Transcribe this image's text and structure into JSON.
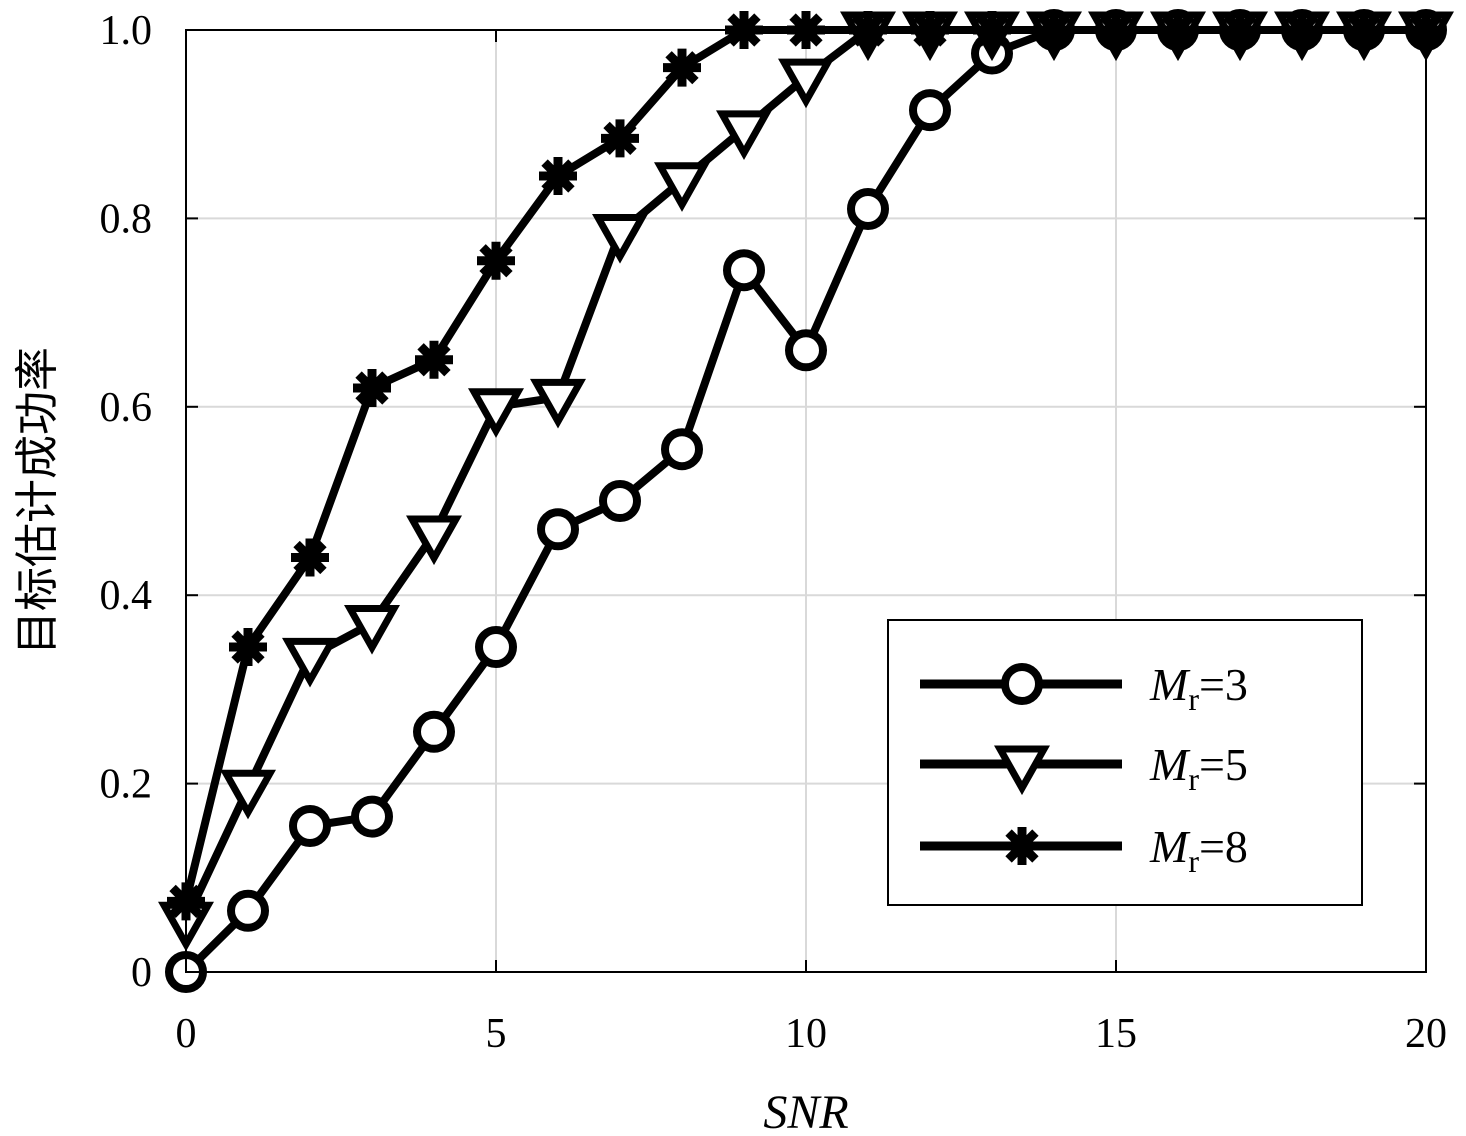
{
  "chart_data": {
    "type": "line",
    "title": "",
    "xlabel": "SNR",
    "ylabel": "目标估计成功率",
    "xlim": [
      0,
      20
    ],
    "ylim": [
      0,
      1
    ],
    "xticks": [
      0,
      5,
      10,
      15,
      20
    ],
    "xtick_labels": [
      "0",
      "5",
      "10",
      "15",
      "20"
    ],
    "yticks": [
      0,
      0.2,
      0.4,
      0.6,
      0.8,
      1.0
    ],
    "ytick_labels": [
      "0",
      "0.2",
      "0.4",
      "0.6",
      "0.8",
      "1.0"
    ],
    "grid": true,
    "legend_position": "lower-right",
    "x": [
      0,
      1,
      2,
      3,
      4,
      5,
      6,
      7,
      8,
      9,
      10,
      11,
      12,
      13,
      14,
      15,
      16,
      17,
      18,
      19,
      20
    ],
    "series": [
      {
        "name": "M_r=3",
        "legend_main": "M",
        "legend_sub": "r",
        "legend_eq": "=3",
        "marker": "circle",
        "values": [
          0.0,
          0.065,
          0.155,
          0.165,
          0.255,
          0.345,
          0.47,
          0.5,
          0.555,
          0.745,
          0.66,
          0.81,
          0.915,
          0.975,
          1.0,
          1.0,
          1.0,
          1.0,
          1.0,
          1.0,
          1.0
        ]
      },
      {
        "name": "M_r=5",
        "legend_main": "M",
        "legend_sub": "r",
        "legend_eq": "=5",
        "marker": "triangle-down",
        "values": [
          0.055,
          0.195,
          0.335,
          0.37,
          0.465,
          0.6,
          0.61,
          0.785,
          0.84,
          0.895,
          0.95,
          1.0,
          1.0,
          1.0,
          1.0,
          1.0,
          1.0,
          1.0,
          1.0,
          1.0,
          1.0
        ]
      },
      {
        "name": "M_r=8",
        "legend_main": "M",
        "legend_sub": "r",
        "legend_eq": "=8",
        "marker": "asterisk",
        "values": [
          0.075,
          0.345,
          0.44,
          0.62,
          0.65,
          0.755,
          0.845,
          0.885,
          0.96,
          1.0,
          1.0,
          1.0,
          1.0,
          1.0,
          1.0,
          1.0,
          1.0,
          1.0,
          1.0,
          1.0,
          1.0
        ]
      }
    ]
  }
}
